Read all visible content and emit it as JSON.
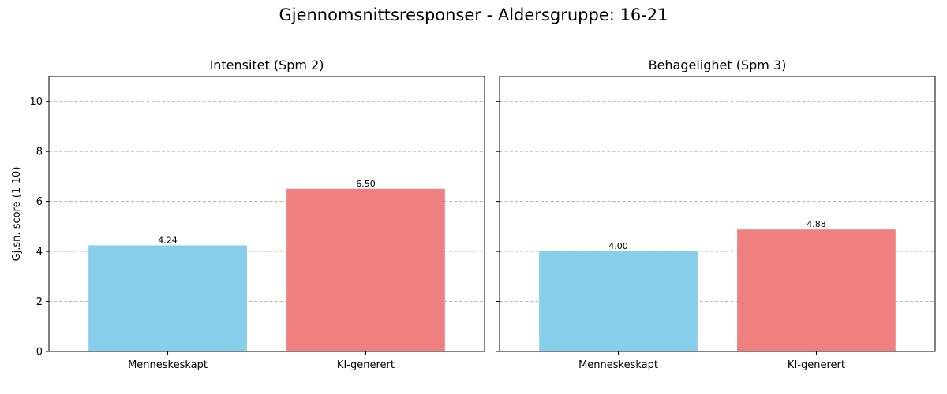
{
  "figure": {
    "title": "Gjennomsnittsresponser - Aldersgruppe: 16-21"
  },
  "chart_data": [
    {
      "type": "bar",
      "title": "Intensitet (Spm 2)",
      "xlabel": "",
      "ylabel": "Gj.sn. score (1-10)",
      "categories": [
        "Menneskeskapt",
        "KI-generert"
      ],
      "values": [
        4.24,
        6.5
      ],
      "value_labels": [
        "4.24",
        "6.50"
      ],
      "bar_colors": [
        "#87CEEB",
        "#F08080"
      ],
      "ylim": [
        0,
        11
      ],
      "yticks": [
        0,
        2,
        4,
        6,
        8,
        10
      ],
      "ytick_labels": [
        "0",
        "2",
        "4",
        "6",
        "8",
        "10"
      ],
      "grid": "y-dashed"
    },
    {
      "type": "bar",
      "title": "Behagelighet (Spm 3)",
      "xlabel": "",
      "ylabel": "",
      "categories": [
        "Menneskeskapt",
        "KI-generert"
      ],
      "values": [
        4.0,
        4.88
      ],
      "value_labels": [
        "4.00",
        "4.88"
      ],
      "bar_colors": [
        "#87CEEB",
        "#F08080"
      ],
      "ylim": [
        0,
        11
      ],
      "yticks": [
        0,
        2,
        4,
        6,
        8,
        10
      ],
      "ytick_labels": [],
      "grid": "y-dashed"
    }
  ]
}
